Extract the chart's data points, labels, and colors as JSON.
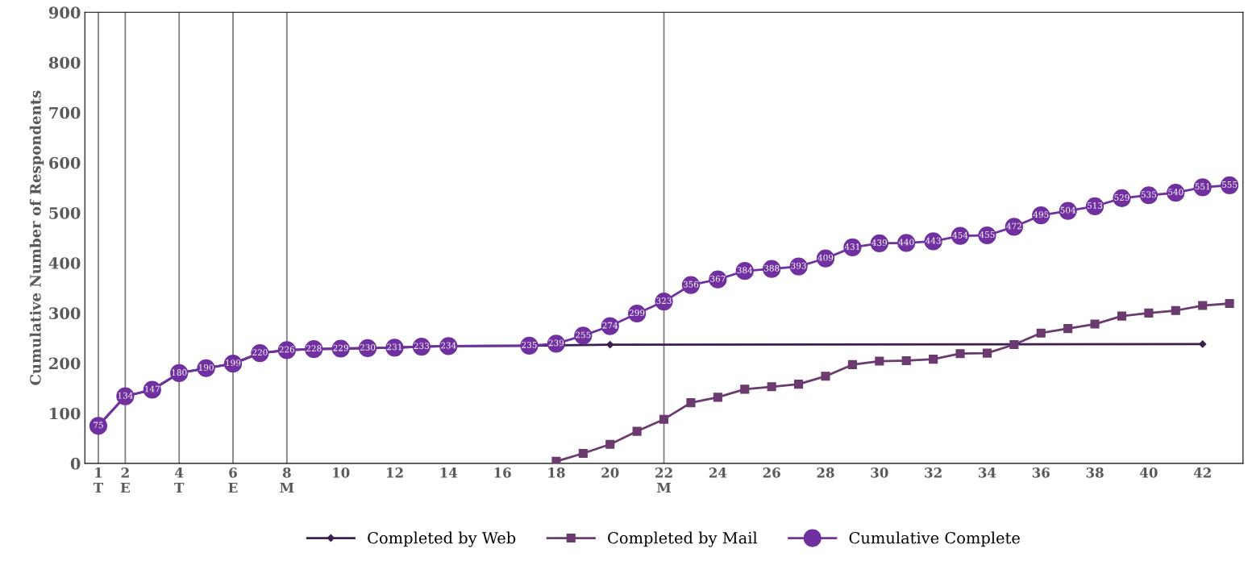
{
  "chart_data": {
    "type": "line",
    "ylabel": "Cumulative Number of Respondents",
    "xlim": [
      0.5,
      43.5
    ],
    "xticks": [
      {
        "value": 1,
        "label": "1\nT"
      },
      {
        "value": 2,
        "label": "2\nE"
      },
      {
        "value": 4,
        "label": "4\nT"
      },
      {
        "value": 6,
        "label": "6\nE"
      },
      {
        "value": 8,
        "label": "8\nM"
      },
      10,
      12,
      14,
      16,
      18,
      20,
      {
        "value": 22,
        "label": "22\nM"
      },
      24,
      26,
      28,
      30,
      32,
      34,
      36,
      38,
      40,
      42
    ],
    "ylim": [
      0,
      900
    ],
    "yticks": [
      0,
      100,
      200,
      300,
      400,
      500,
      600,
      700,
      800,
      900
    ],
    "grid": false,
    "legend": "bottom",
    "ref_lines": [
      {
        "axis": "x",
        "value": 1,
        "color": "#808080"
      },
      {
        "axis": "x",
        "value": 2,
        "color": "#808080"
      },
      {
        "axis": "x",
        "value": 4,
        "color": "#808080"
      },
      {
        "axis": "x",
        "value": 6,
        "color": "#808080"
      },
      {
        "axis": "x",
        "value": 8,
        "color": "#808080"
      },
      {
        "axis": "x",
        "value": 22,
        "color": "#808080"
      }
    ],
    "series": [
      {
        "name": "Completed by Web",
        "color": "#3b1f4e",
        "marker": "diamond",
        "x": [
          1,
          2,
          3,
          4,
          5,
          6,
          7,
          8,
          9,
          10,
          11,
          12,
          13,
          14,
          17,
          20,
          42
        ],
        "values": [
          75,
          134,
          147,
          180,
          190,
          199,
          220,
          226,
          228,
          229,
          230,
          231,
          233,
          234,
          235,
          237,
          238
        ]
      },
      {
        "name": "Completed by Mail",
        "color": "#6b3a6e",
        "marker": "square",
        "x": [
          18,
          19,
          20,
          21,
          22,
          23,
          24,
          25,
          26,
          27,
          28,
          29,
          30,
          31,
          32,
          33,
          34,
          35,
          36,
          37,
          38,
          39,
          40,
          41,
          42,
          43
        ],
        "values": [
          4,
          20,
          38,
          64,
          88,
          121,
          132,
          148,
          153,
          158,
          174,
          197,
          204,
          205,
          208,
          219,
          220,
          237,
          260,
          269,
          278,
          294,
          300,
          305,
          315,
          319
        ]
      },
      {
        "name": "Cumulative Complete",
        "color": "#7030a0",
        "marker": "circle",
        "x": [
          1,
          2,
          3,
          4,
          5,
          6,
          7,
          8,
          9,
          10,
          11,
          12,
          13,
          14,
          17,
          18,
          19,
          20,
          21,
          22,
          23,
          24,
          25,
          26,
          27,
          28,
          29,
          30,
          31,
          32,
          33,
          34,
          35,
          36,
          37,
          38,
          39,
          40,
          41,
          42,
          43
        ],
        "values": [
          75,
          134,
          147,
          180,
          190,
          199,
          220,
          226,
          228,
          229,
          230,
          231,
          233,
          234,
          235,
          239,
          255,
          274,
          299,
          323,
          356,
          367,
          384,
          388,
          393,
          409,
          431,
          439,
          440,
          443,
          454,
          455,
          472,
          495,
          504,
          513,
          529,
          535,
          540,
          551,
          555
        ],
        "value_labels": [
          "75",
          "134",
          "147",
          "180",
          "190",
          "199",
          "220",
          "226",
          "228",
          "229",
          "230",
          "231",
          "233",
          "234",
          "235",
          "239",
          "255",
          "274",
          "299",
          "323",
          "356",
          "367",
          "384",
          "388",
          "393",
          "409",
          "431",
          "439",
          "440",
          "443",
          "454",
          "455",
          "472",
          "495",
          "504",
          "513",
          "529",
          "535",
          "540",
          "551",
          "555"
        ]
      }
    ]
  }
}
